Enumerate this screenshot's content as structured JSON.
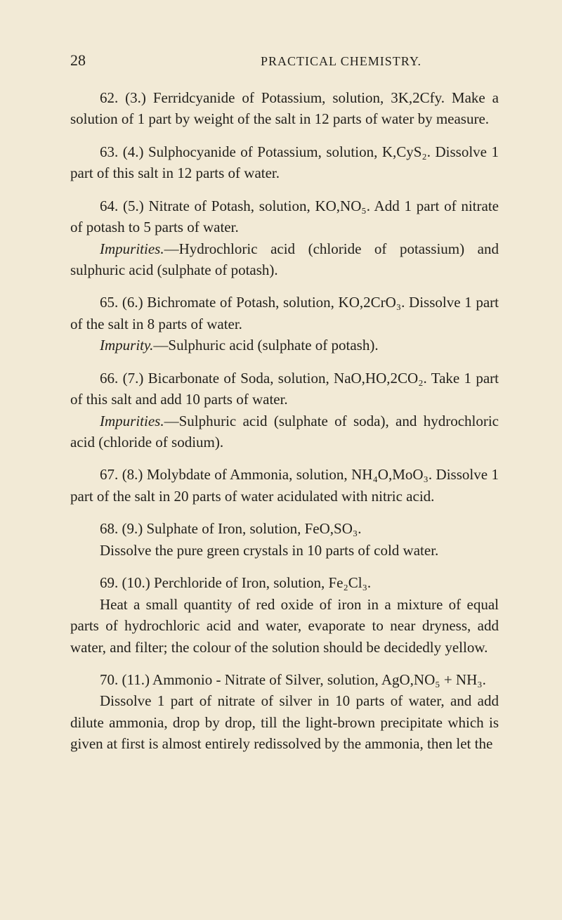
{
  "header": {
    "page_number": "28",
    "running_title": "PRACTICAL CHEMISTRY."
  },
  "entries": [
    {
      "lines": [
        "62. (3.) Ferridcyanide of Potassium, solution, 3K,2Cfy. Make a solution of 1 part by weight of the salt in 12 parts of water by measure."
      ]
    },
    {
      "lines": [
        "63. (4.) Sulphocyanide of Potassium, solution, K,CyS₂. Dissolve 1 part of this salt in 12 parts of water."
      ]
    },
    {
      "lines": [
        "64. (5.) Nitrate of Potash, solution, KO,NO₅. Add 1 part of nitrate of potash to 5 parts of water.",
        "<em class=\"ital\">Impurities.</em>—Hydrochloric acid (chloride of potassium) and sulphuric acid (sulphate of potash)."
      ]
    },
    {
      "lines": [
        "65. (6.) Bichromate of Potash, solution, KO,2CrO₃. Dissolve 1 part of the salt in 8 parts of water.",
        "<em class=\"ital\">Impurity.</em>—Sulphuric acid (sulphate of potash)."
      ]
    },
    {
      "lines": [
        "66. (7.) Bicarbonate of Soda, solution, NaO,HO,2CO₂. Take 1 part of this salt and add 10 parts of water.",
        "<em class=\"ital\">Impurities.</em>—Sulphuric acid (sulphate of soda), and hydrochloric acid (chloride of sodium)."
      ]
    },
    {
      "lines": [
        "67. (8.) Molybdate of Ammonia, solution, NH₄O,MoO₃. Dissolve 1 part of the salt in 20 parts of water acidulated with nitric acid."
      ]
    },
    {
      "lines": [
        "68. (9.) Sulphate of Iron, solution, FeO,SO₃.",
        "Dissolve the pure green crystals in 10 parts of cold water."
      ]
    },
    {
      "lines": [
        "69. (10.) Perchloride of Iron, solution, Fe₂Cl₃.",
        "Heat a small quantity of red oxide of iron in a mixture of equal parts of hydrochloric acid and water, evaporate to near dryness, add water, and filter; the colour of the solution should be decidedly yellow."
      ]
    },
    {
      "lines": [
        "70. (11.) Ammonio - Nitrate of Silver, solution, AgO,NO₅ + NH₃.",
        "Dissolve 1 part of nitrate of silver in 10 parts of water, and add dilute ammonia, drop by drop, till the light-brown precipitate which is given at first is almost entirely redissolved by the ammonia, then let the"
      ]
    }
  ]
}
